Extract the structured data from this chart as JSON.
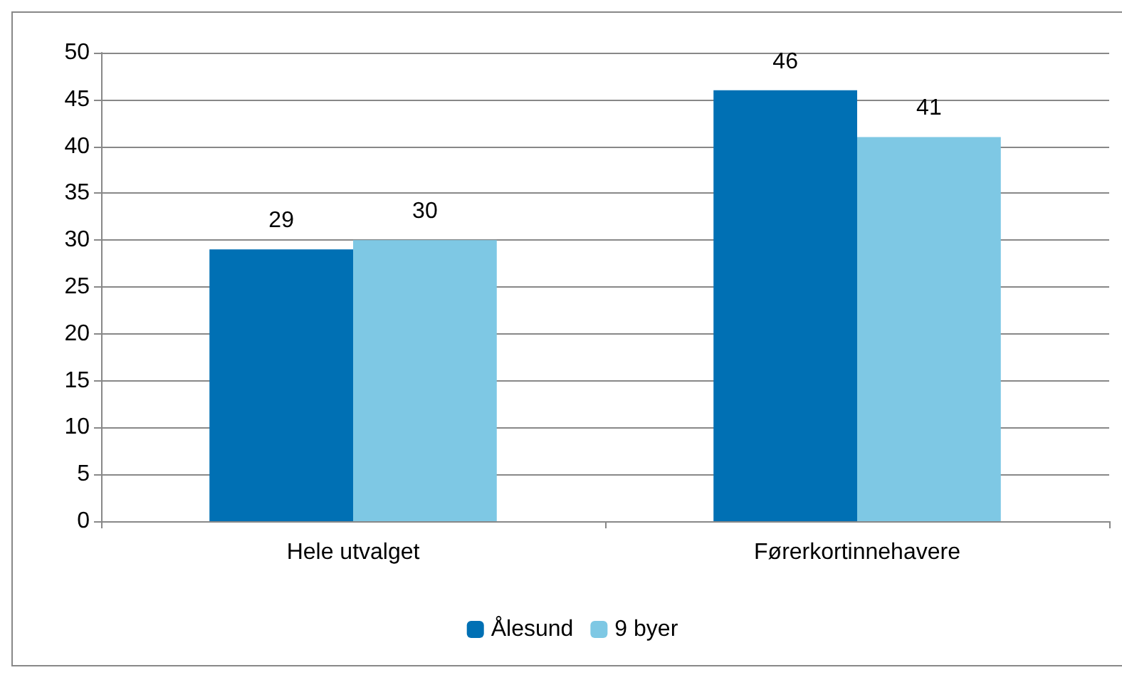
{
  "chart_data": {
    "type": "bar",
    "categories": [
      "Hele utvalget",
      "Førerkortinnehavere"
    ],
    "series": [
      {
        "name": "Ålesund",
        "color": "#0070b4",
        "values": [
          29,
          46
        ]
      },
      {
        "name": "9 byer",
        "color": "#7ec8e4",
        "values": [
          30,
          41
        ]
      }
    ],
    "ylim": [
      0,
      50
    ],
    "yticks": [
      0,
      5,
      10,
      15,
      20,
      25,
      30,
      35,
      40,
      45,
      50
    ],
    "grid": "y",
    "legend": "bottom",
    "data_labels": true
  }
}
